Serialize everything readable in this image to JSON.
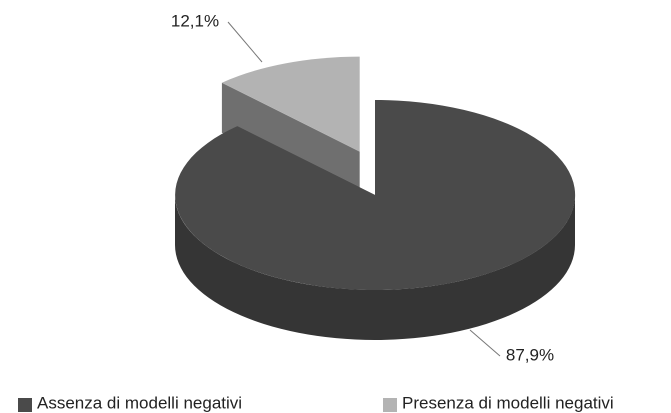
{
  "chart_data": {
    "type": "pie",
    "categories": [
      "Assenza di modelli negativi",
      "Presenza di modelli negativi"
    ],
    "values": [
      87.9,
      12.1
    ],
    "value_labels": [
      "87,9%",
      "12,1%"
    ],
    "colors": [
      "#4a4a4a",
      "#b3b3b3"
    ],
    "legend": "bottom"
  }
}
